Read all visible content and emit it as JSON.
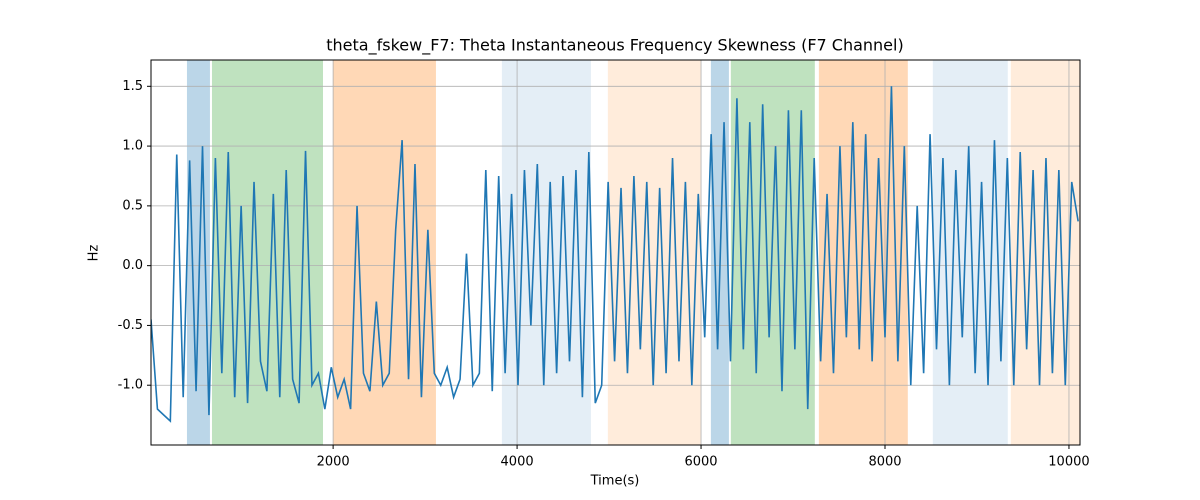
{
  "chart_data": {
    "type": "line",
    "title": "theta_fskew_F7: Theta Instantaneous Frequency Skewness (F7 Channel)",
    "xlabel": "Time(s)",
    "ylabel": "Hz",
    "x": [
      20,
      90,
      160,
      230,
      300,
      370,
      440,
      510,
      580,
      650,
      720,
      790,
      860,
      930,
      1000,
      1070,
      1140,
      1210,
      1280,
      1350,
      1420,
      1490,
      1560,
      1630,
      1700,
      1770,
      1840,
      1910,
      1980,
      2050,
      2120,
      2190,
      2260,
      2330,
      2400,
      2470,
      2540,
      2610,
      2680,
      2750,
      2820,
      2890,
      2960,
      3030,
      3100,
      3170,
      3240,
      3310,
      3380,
      3450,
      3520,
      3590,
      3660,
      3730,
      3800,
      3870,
      3940,
      4010,
      4080,
      4150,
      4220,
      4290,
      4360,
      4430,
      4500,
      4570,
      4640,
      4710,
      4780,
      4850,
      4920,
      4990,
      5060,
      5130,
      5200,
      5270,
      5340,
      5410,
      5480,
      5550,
      5620,
      5690,
      5760,
      5830,
      5900,
      5970,
      6040,
      6110,
      6180,
      6250,
      6320,
      6390,
      6460,
      6530,
      6600,
      6670,
      6740,
      6810,
      6880,
      6950,
      7020,
      7090,
      7160,
      7230,
      7300,
      7370,
      7440,
      7510,
      7580,
      7650,
      7720,
      7790,
      7860,
      7930,
      8000,
      8070,
      8140,
      8210,
      8280,
      8350,
      8420,
      8490,
      8560,
      8630,
      8700,
      8770,
      8840,
      8910,
      8980,
      9050,
      9120,
      9190,
      9260,
      9330,
      9400,
      9470,
      9540,
      9610,
      9680,
      9750,
      9820,
      9890,
      9960,
      10030,
      10100
    ],
    "series": [
      {
        "name": "theta_fskew_F7",
        "color": "#1f77b4",
        "values": [
          -0.45,
          -1.2,
          -1.25,
          -1.3,
          0.93,
          -1.1,
          0.88,
          -1.05,
          1.0,
          -1.25,
          0.9,
          -0.9,
          0.95,
          -1.1,
          0.5,
          -1.15,
          0.7,
          -0.8,
          -1.05,
          0.6,
          -1.1,
          0.8,
          -0.95,
          -1.15,
          0.96,
          -1.0,
          -0.9,
          -1.2,
          -0.85,
          -1.1,
          -0.95,
          -1.2,
          0.5,
          -0.9,
          -1.05,
          -0.3,
          -1.0,
          -0.9,
          0.3,
          1.05,
          -0.95,
          0.85,
          -1.1,
          0.3,
          -0.9,
          -1.0,
          -0.85,
          -1.1,
          -0.95,
          0.1,
          -1.0,
          -0.9,
          0.8,
          -1.05,
          0.75,
          -0.9,
          0.6,
          -1.0,
          0.8,
          -0.5,
          0.85,
          -1.0,
          0.7,
          -0.9,
          0.75,
          -0.8,
          0.8,
          -1.1,
          0.95,
          -1.15,
          -1.0,
          0.7,
          -0.8,
          0.65,
          -0.9,
          0.75,
          -0.7,
          0.7,
          -1.0,
          0.65,
          -0.9,
          0.9,
          -0.8,
          0.7,
          -1.0,
          0.6,
          -0.6,
          1.1,
          -0.7,
          1.2,
          -0.8,
          1.4,
          -0.7,
          1.2,
          -0.9,
          1.35,
          -0.6,
          1.0,
          -1.05,
          1.3,
          -0.7,
          1.3,
          -1.2,
          0.9,
          -0.8,
          0.6,
          -0.9,
          1.0,
          -0.6,
          1.2,
          -0.7,
          1.1,
          -0.8,
          0.9,
          -0.6,
          1.5,
          -0.8,
          1.0,
          -1.0,
          0.5,
          -0.9,
          1.1,
          -0.7,
          0.9,
          -1.0,
          0.8,
          -0.6,
          1.0,
          -0.9,
          0.7,
          -1.0,
          1.05,
          -0.8,
          0.9,
          -1.0,
          0.95,
          -0.7,
          0.8,
          -1.0,
          0.9,
          -0.9,
          0.8,
          -1.0,
          0.7,
          0.37
        ]
      }
    ],
    "spans": [
      {
        "x0": 411,
        "x1": 661,
        "color": "#1f77b4",
        "alpha": 0.3
      },
      {
        "x0": 683,
        "x1": 1890,
        "color": "#2ca02c",
        "alpha": 0.3
      },
      {
        "x0": 1998,
        "x1": 3118,
        "color": "#ff7f0e",
        "alpha": 0.3
      },
      {
        "x0": 3835,
        "x1": 4803,
        "color": "#1f77b4",
        "alpha": 0.12
      },
      {
        "x0": 4987,
        "x1": 6000,
        "color": "#ff7f0e",
        "alpha": 0.15
      },
      {
        "x0": 6107,
        "x1": 6303,
        "color": "#1f77b4",
        "alpha": 0.3
      },
      {
        "x0": 6324,
        "x1": 7237,
        "color": "#2ca02c",
        "alpha": 0.3
      },
      {
        "x0": 7281,
        "x1": 8248,
        "color": "#ff7f0e",
        "alpha": 0.3
      },
      {
        "x0": 8520,
        "x1": 9335,
        "color": "#1f77b4",
        "alpha": 0.12
      },
      {
        "x0": 9368,
        "x1": 10120,
        "color": "#ff7f0e",
        "alpha": 0.15
      }
    ],
    "xlim": [
      20,
      10120
    ],
    "ylim": [
      -1.5,
      1.72
    ],
    "xticks": [
      2000,
      4000,
      6000,
      8000,
      10000
    ],
    "yticks": [
      {
        "value": -1.0,
        "label": "-1.0"
      },
      -0.5,
      {
        "value": 0.0,
        "label": "0.0"
      },
      0.5,
      {
        "value": 1.0,
        "label": "1.0"
      },
      1.5
    ],
    "grid": true
  }
}
